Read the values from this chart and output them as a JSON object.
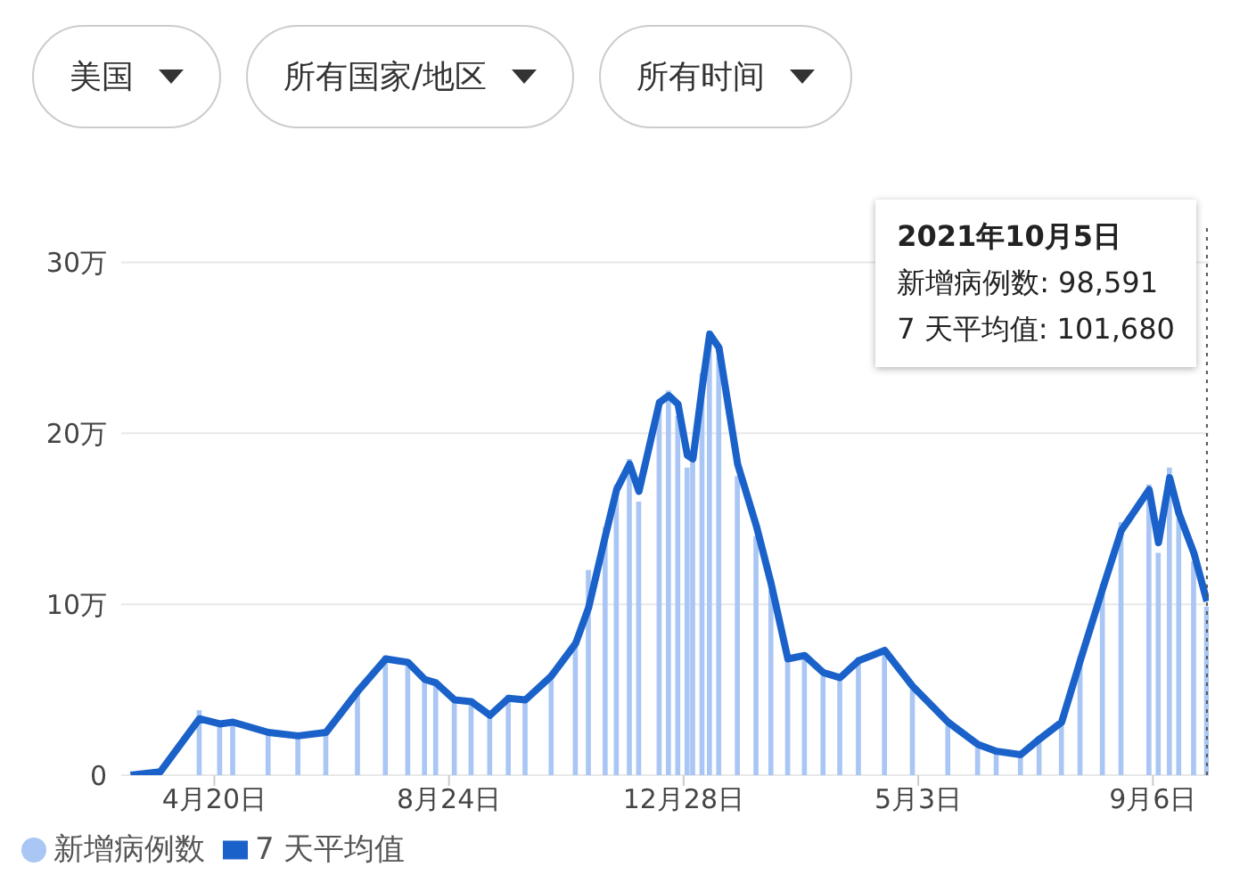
{
  "chart_data": {
    "type": "bar",
    "x": [
      "2020-03-06",
      "2020-03-22",
      "2020-04-12",
      "2020-04-23",
      "2020-04-30",
      "2020-05-19",
      "2020-06-04",
      "2020-06-19",
      "2020-07-06",
      "2020-07-21",
      "2020-08-02",
      "2020-08-11",
      "2020-08-17",
      "2020-08-27",
      "2020-09-05",
      "2020-09-15",
      "2020-09-25",
      "2020-10-04",
      "2020-10-18",
      "2020-10-31",
      "2020-11-07",
      "2020-11-16",
      "2020-11-22",
      "2020-11-29",
      "2020-12-04",
      "2020-12-15",
      "2020-12-20",
      "2020-12-25",
      "2020-12-30",
      "2021-01-02",
      "2021-01-07",
      "2021-01-11",
      "2021-01-16",
      "2021-01-26",
      "2021-02-05",
      "2021-02-13",
      "2021-02-22",
      "2021-03-03",
      "2021-03-13",
      "2021-03-22",
      "2021-04-01",
      "2021-04-15",
      "2021-04-30",
      "2021-05-19",
      "2021-06-04",
      "2021-06-14",
      "2021-06-27",
      "2021-07-07",
      "2021-07-19",
      "2021-07-29",
      "2021-08-10",
      "2021-08-20",
      "2021-09-04",
      "2021-09-09",
      "2021-09-15",
      "2021-09-20",
      "2021-09-28",
      "2021-10-05"
    ],
    "series": [
      {
        "name": "新增病例数",
        "color": "#a9c6f4",
        "values": [
          0,
          null,
          3.8,
          2.9,
          3.2,
          2.4,
          2.2,
          2.6,
          5.0,
          7.0,
          6.4,
          5.7,
          5.3,
          4.5,
          4.1,
          3.6,
          4.7,
          4.3,
          6.0,
          7.9,
          12.0,
          14.5,
          17.0,
          18.5,
          16.0,
          22.0,
          22.5,
          21.0,
          18.0,
          19.0,
          23.5,
          26.0,
          24.5,
          17.5,
          14.0,
          10.8,
          6.6,
          6.8,
          5.8,
          5.5,
          6.9,
          7.4,
          5.0,
          2.9,
          1.6,
          1.3,
          1.1,
          2.3,
          3.3,
          7.0,
          11.2,
          14.8,
          17.0,
          13.0,
          18.0,
          15.0,
          12.5,
          9.8591
        ]
      },
      {
        "name": "7 天平均值",
        "type": "line",
        "color": "#1a62c9",
        "values": [
          0,
          0.2,
          3.3,
          3.0,
          3.1,
          2.5,
          2.3,
          2.5,
          4.9,
          6.8,
          6.6,
          5.6,
          5.4,
          4.4,
          4.3,
          3.5,
          4.5,
          4.4,
          5.8,
          7.7,
          9.8,
          14.0,
          16.7,
          18.2,
          16.6,
          21.8,
          22.2,
          21.7,
          18.7,
          18.5,
          22.7,
          25.8,
          25.0,
          18.2,
          14.6,
          11.2,
          6.8,
          7.0,
          6.0,
          5.7,
          6.7,
          7.3,
          5.2,
          3.1,
          1.8,
          1.4,
          1.2,
          2.1,
          3.1,
          6.7,
          10.9,
          14.3,
          16.7,
          13.6,
          17.4,
          15.3,
          13.0,
          10.168
        ]
      }
    ],
    "xlim": [
      "2020-03-01",
      "2021-10-06"
    ],
    "xticks": [
      {
        "value": "2020-04-20",
        "label": "4月20日"
      },
      {
        "value": "2020-08-24",
        "label": "8月24日"
      },
      {
        "value": "2020-12-28",
        "label": "12月28日"
      },
      {
        "value": "2021-05-03",
        "label": "5月3日"
      },
      {
        "value": "2021-09-06",
        "label": "9月6日"
      }
    ],
    "ylim": [
      0,
      32
    ],
    "yticks": [
      0,
      {
        "value": 10,
        "label": "10万"
      },
      {
        "value": 20,
        "label": "20万"
      },
      {
        "value": 30,
        "label": "30万"
      }
    ],
    "grid": "y",
    "legend": "bottom left",
    "marker": "none",
    "line_style": "solid",
    "ref_lines": [
      {
        "axis": "x",
        "value": "2021-10-05",
        "label": null,
        "color": "#555555",
        "line_style": "dotted"
      }
    ],
    "annotations": [
      "美国",
      "所有国家/地区",
      "所有时间",
      "2021年10月5日",
      "新增病例数: 98,591",
      "7 天平均值: 101,680"
    ]
  }
}
